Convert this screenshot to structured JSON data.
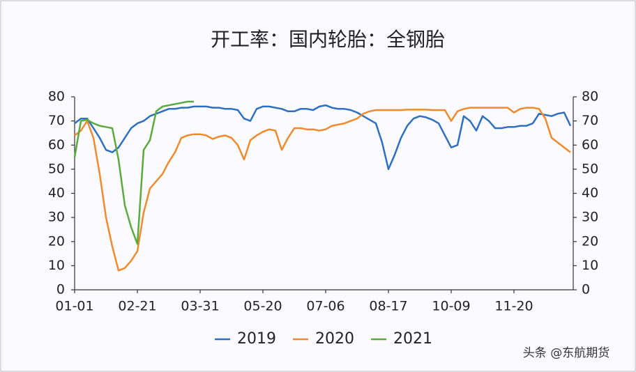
{
  "chart_data": {
    "type": "line",
    "title": "开工率：国内轮胎：全钢胎",
    "watermark": "头条 @东航期货",
    "categories": [
      "01-01",
      null,
      null,
      null,
      null,
      null,
      null,
      null,
      null,
      null,
      "02-21",
      null,
      null,
      null,
      null,
      null,
      null,
      null,
      null,
      null,
      "03-31",
      null,
      null,
      null,
      null,
      null,
      null,
      null,
      null,
      null,
      "05-20",
      null,
      null,
      null,
      null,
      null,
      null,
      null,
      null,
      null,
      "07-06",
      null,
      null,
      null,
      null,
      null,
      null,
      null,
      null,
      null,
      "08-17",
      null,
      null,
      null,
      null,
      null,
      null,
      null,
      null,
      null,
      "10-09",
      null,
      null,
      null,
      null,
      null,
      null,
      null,
      null,
      null,
      "11-20",
      null,
      null,
      null,
      null,
      null,
      null,
      null,
      null,
      null
    ],
    "series": [
      {
        "name": "2019",
        "color": "#2e6fc0",
        "values": [
          69,
          71,
          71,
          67,
          63,
          58,
          57,
          59,
          63,
          67,
          69,
          70,
          72,
          73,
          74,
          75,
          75,
          75.5,
          75.5,
          76,
          76,
          76,
          75.5,
          75.5,
          75,
          75,
          74.5,
          71,
          70,
          75,
          76,
          76,
          75.5,
          75,
          74,
          74,
          75,
          75,
          74.5,
          76,
          76.5,
          75.5,
          75,
          75,
          74.5,
          73.5,
          72,
          70.5,
          69,
          61,
          50,
          56,
          63,
          68,
          71,
          72,
          71.5,
          70.5,
          69,
          64,
          59,
          60,
          72,
          70,
          66,
          72,
          70,
          67,
          67,
          67.5,
          67.5,
          68,
          68,
          69,
          73,
          72.5,
          72,
          73,
          73.5,
          68
        ]
      },
      {
        "name": "2020",
        "color": "#f08a2c",
        "values": [
          64,
          66,
          70,
          63,
          48,
          30,
          18,
          8,
          9,
          12,
          16,
          32,
          42,
          45,
          48,
          53,
          57,
          63,
          64,
          64.5,
          64.5,
          64,
          62.5,
          63.5,
          64,
          63,
          60,
          54,
          62,
          64,
          65.5,
          66.5,
          66,
          58,
          63,
          67,
          67,
          66.5,
          66.5,
          66,
          66.5,
          68,
          68.5,
          69,
          70,
          71,
          73,
          74,
          74.5,
          74.5,
          74.5,
          74.5,
          74.5,
          74.7,
          74.7,
          74.7,
          74.7,
          74.5,
          74.5,
          74.5,
          70,
          74,
          75,
          75.5,
          75.5,
          75.5,
          75.5,
          75.5,
          75.5,
          75.5,
          73.5,
          75,
          75.5,
          75.5,
          75,
          71,
          63,
          61,
          59,
          57
        ]
      },
      {
        "name": "2021",
        "color": "#5aab3e",
        "values": [
          55,
          70,
          70.5,
          69,
          68,
          67.5,
          67,
          54,
          35,
          26,
          19,
          58,
          62,
          74,
          76,
          76.5,
          77,
          77.5,
          78,
          78,
          null,
          null,
          null,
          null,
          null,
          null,
          null,
          null,
          null,
          null,
          null,
          null,
          null,
          null,
          null,
          null,
          null,
          null,
          null,
          null,
          null,
          null,
          null,
          null,
          null,
          null,
          null,
          null,
          null,
          null,
          null,
          null,
          null,
          null,
          null,
          null,
          null,
          null,
          null,
          null,
          null,
          null,
          null,
          null,
          null,
          null,
          null,
          null,
          null,
          null,
          null,
          null,
          null,
          null,
          null,
          null,
          null,
          null,
          null,
          null
        ]
      }
    ],
    "ylim": [
      0,
      80
    ],
    "yticks": [
      0,
      10,
      20,
      30,
      40,
      50,
      60,
      70,
      80
    ],
    "y2lim": [
      0,
      80
    ],
    "y2ticks": [
      0,
      10,
      20,
      30,
      40,
      50,
      60,
      70,
      80
    ],
    "legend": "bottom"
  }
}
